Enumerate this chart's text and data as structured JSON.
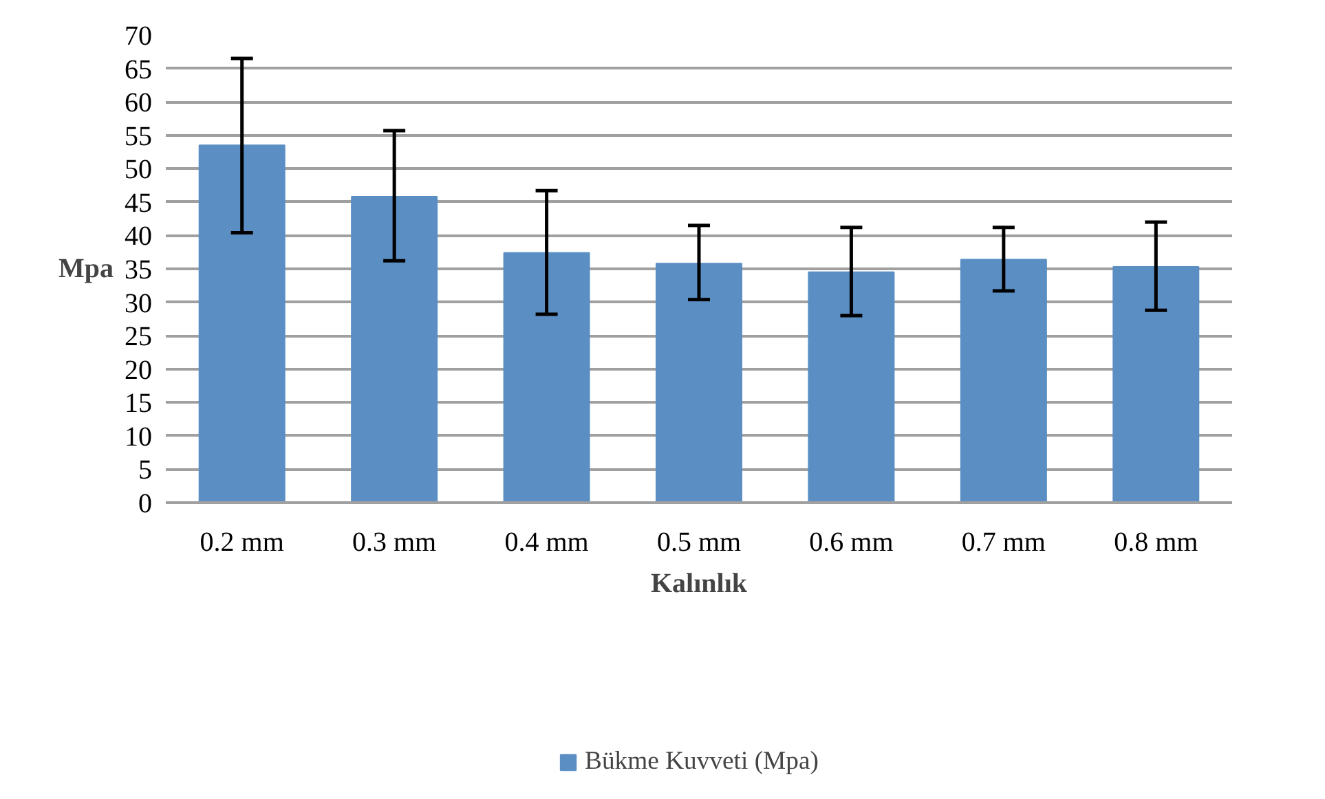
{
  "chart_data": {
    "type": "bar",
    "xlabel": "Kalınlık",
    "ylabel": "Mpa",
    "categories": [
      "0.2 mm",
      "0.3 mm",
      "0.4 mm",
      "0.5 mm",
      "0.6 mm",
      "0.7 mm",
      "0.8 mm"
    ],
    "series": [
      {
        "name": "Bükme Kuvveti (Mpa)",
        "color": "#5b8fc4",
        "values": [
          53.5,
          45.8,
          37.4,
          35.8,
          34.5,
          36.4,
          35.3
        ],
        "errors": [
          [
            40.4,
            66.5
          ],
          [
            36.2,
            55.7
          ],
          [
            28.2,
            46.7
          ],
          [
            30.4,
            41.5
          ],
          [
            28.0,
            41.2
          ],
          [
            31.7,
            41.2
          ],
          [
            28.8,
            42.0
          ]
        ]
      }
    ],
    "ylim": [
      0,
      70
    ],
    "yticks": [
      0,
      5,
      10,
      15,
      20,
      25,
      30,
      35,
      40,
      45,
      50,
      55,
      60,
      65,
      70
    ],
    "grid": "y",
    "legend": "bottom"
  }
}
